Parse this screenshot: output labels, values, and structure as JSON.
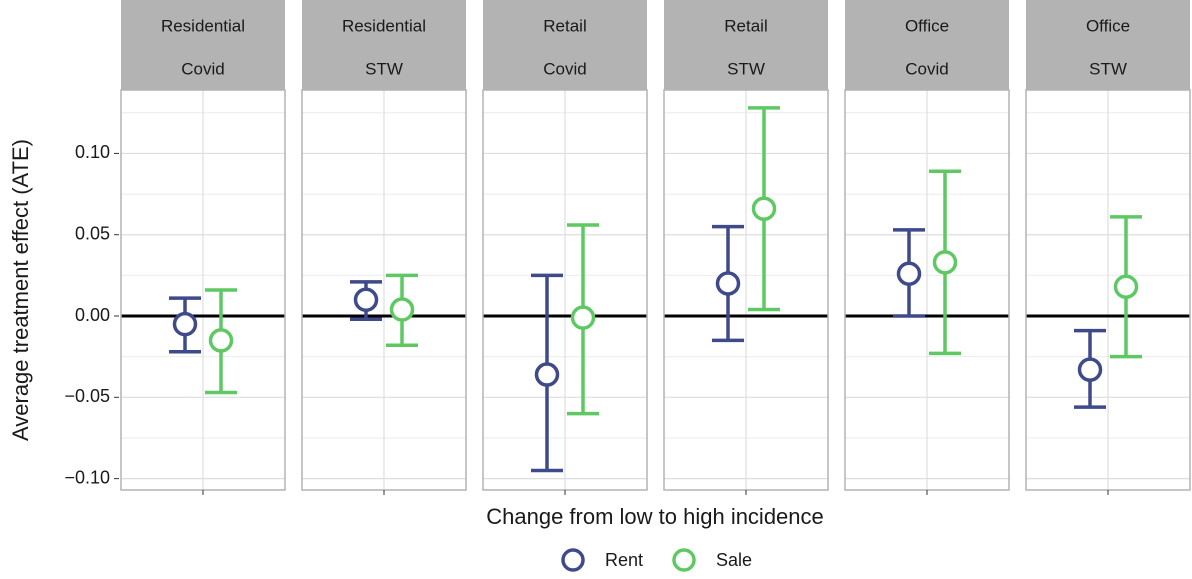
{
  "chart_data": {
    "type": "errorbar",
    "y_label": "Average treatment effect (ATE)",
    "x_label": "Change from low to high incidence",
    "facets": [
      [
        "Residential",
        "Covid"
      ],
      [
        "Residential",
        "STW"
      ],
      [
        "Retail",
        "Covid"
      ],
      [
        "Retail",
        "STW"
      ],
      [
        "Office",
        "Covid"
      ],
      [
        "Office",
        "STW"
      ]
    ],
    "ylim": [
      -0.107,
      0.139
    ],
    "yticks": [
      {
        "value": -0.1,
        "label": "−0.10"
      },
      {
        "value": -0.05,
        "label": "−0.05"
      },
      {
        "value": 0,
        "label": "0.00"
      },
      {
        "value": 0.05,
        "label": "0.05"
      },
      {
        "value": 0.1,
        "label": "0.10"
      }
    ],
    "yminor": [
      -0.075,
      -0.025,
      0.025,
      0.075,
      0.125
    ],
    "grid": true,
    "legend": "bottom",
    "series": [
      {
        "name": "Rent",
        "color": "#3e4a89",
        "values": [
          -0.005,
          0.01,
          -0.036,
          0.02,
          0.026,
          -0.033
        ],
        "lower": [
          -0.022,
          -0.002,
          -0.095,
          -0.015,
          0.0,
          -0.056
        ],
        "upper": [
          0.011,
          0.021,
          0.025,
          0.055,
          0.053,
          -0.009
        ]
      },
      {
        "name": "Sale",
        "color": "#5ec962",
        "values": [
          -0.015,
          0.004,
          -0.001,
          0.066,
          0.033,
          0.018
        ],
        "lower": [
          -0.047,
          -0.018,
          -0.06,
          0.004,
          -0.023,
          -0.025
        ],
        "upper": [
          0.016,
          0.025,
          0.056,
          0.128,
          0.089,
          0.061
        ]
      }
    ]
  }
}
